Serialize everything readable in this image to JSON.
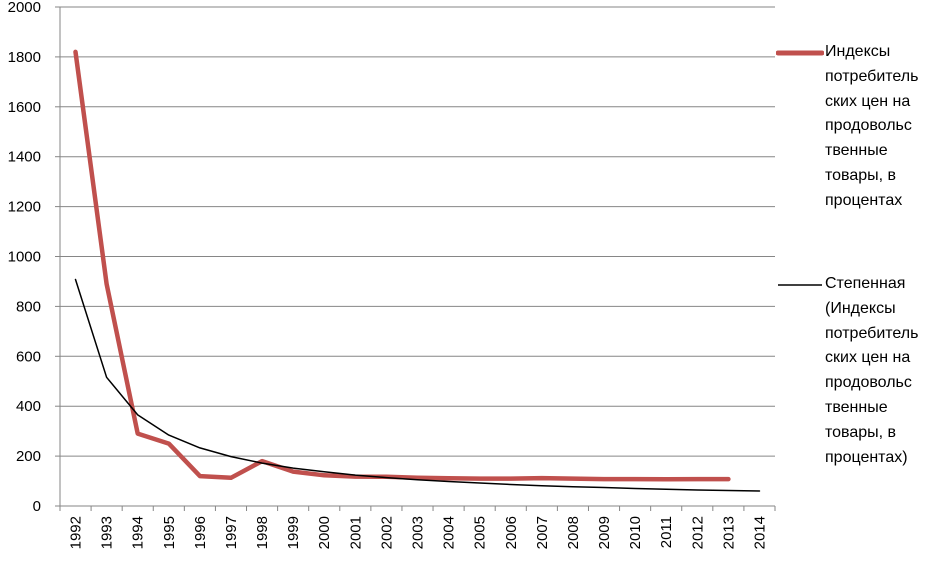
{
  "chart_data": {
    "type": "line",
    "title": "",
    "xlabel": "",
    "ylabel": "",
    "ylim": [
      0,
      2000
    ],
    "yticks": [
      0,
      200,
      400,
      600,
      800,
      1000,
      1200,
      1400,
      1600,
      1800,
      2000
    ],
    "categories": [
      "1992",
      "1993",
      "1994",
      "1995",
      "1996",
      "1997",
      "1998",
      "1999",
      "2000",
      "2001",
      "2002",
      "2003",
      "2004",
      "2005",
      "2006",
      "2007",
      "2008",
      "2009",
      "2010",
      "2011",
      "2012",
      "2013",
      "2014"
    ],
    "grid": "horizontal",
    "legend_position": "right",
    "series": [
      {
        "name": "Индексы потребительских цен на продовольственные товары, в процентах",
        "color": "#c0504d",
        "values": [
          1820,
          890,
          290,
          250,
          120,
          113,
          180,
          138,
          123,
          118,
          117,
          113,
          111,
          110,
          110,
          112,
          110,
          108,
          108,
          107,
          108,
          108,
          null
        ]
      },
      {
        "name": "Степенная (Индексы потребительских цен на продовольственные товары, в процентах)",
        "color": "#000000",
        "trend": "power",
        "values": [
          908,
          516,
          365,
          284,
          233,
          198,
          172,
          152,
          137,
          124,
          114,
          105,
          98,
          92,
          86,
          81,
          77,
          74,
          70,
          67,
          64,
          62,
          60
        ]
      }
    ]
  },
  "legend": {
    "items": [
      {
        "label": "Индексы потребитель ских цен на продовольс твенные товары, в процентах"
      },
      {
        "label": "Степенная (Индексы потребитель ских цен на продовольс твенные товары, в процентах)"
      }
    ]
  }
}
